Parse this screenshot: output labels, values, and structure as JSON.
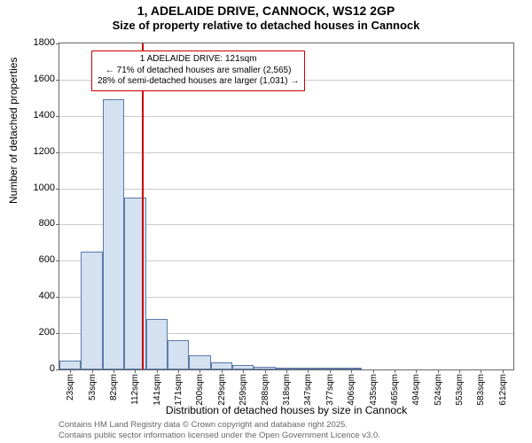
{
  "title_line1": "1, ADELAIDE DRIVE, CANNOCK, WS12 2GP",
  "title_line2": "Size of property relative to detached houses in Cannock",
  "y_axis_label": "Number of detached properties",
  "x_axis_label": "Distribution of detached houses by size in Cannock",
  "footer_line1": "Contains HM Land Registry data © Crown copyright and database right 2025.",
  "footer_line2": "Contains public sector information licensed under the Open Government Licence v3.0.",
  "info_box": {
    "line1": "1 ADELAIDE DRIVE: 121sqm",
    "line2": "← 71% of detached houses are smaller (2,565)",
    "line3": "28% of semi-detached houses are larger (1,031) →"
  },
  "chart": {
    "type": "histogram",
    "ylim": [
      0,
      1800
    ],
    "ytick_step": 200,
    "bar_fill": "#d4e1f1",
    "bar_stroke": "#5b7aa8",
    "grid_color": "#cccccc",
    "border_color": "#666666",
    "marker_color": "#cc0000",
    "background_color": "#ffffff",
    "marker_x_value": 121,
    "x_min": 8,
    "x_max": 627,
    "x_tick_labels": [
      "23sqm",
      "53sqm",
      "82sqm",
      "112sqm",
      "141sqm",
      "171sqm",
      "200sqm",
      "229sqm",
      "259sqm",
      "288sqm",
      "318sqm",
      "347sqm",
      "377sqm",
      "406sqm",
      "435sqm",
      "465sqm",
      "494sqm",
      "524sqm",
      "553sqm",
      "583sqm",
      "612sqm"
    ],
    "values": [
      50,
      650,
      1490,
      950,
      280,
      160,
      80,
      40,
      25,
      15,
      12,
      12,
      12,
      12,
      0,
      0,
      0,
      0,
      0,
      0,
      0
    ],
    "title_fontsize": 14,
    "label_fontsize": 12,
    "tick_fontsize": 11
  }
}
